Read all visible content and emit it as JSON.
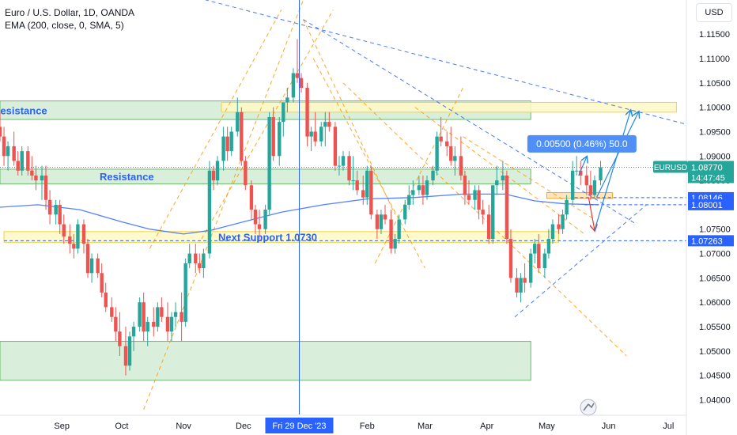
{
  "header": {
    "title": "Euro / U.S. Dollar, 1D, OANDA",
    "indicator": "EMA (200, close, 0, SMA, 5)"
  },
  "currency_button": "USD",
  "colors": {
    "up": "#26a69a",
    "down": "#ef5350",
    "ema": "#2962ff",
    "zone_green": "#c8e6c9",
    "zone_yellow": "#fff59d",
    "trend_orange": "#ff9800",
    "trend_blue": "#2962ff",
    "projection": "#1e88e5"
  },
  "chart_data": {
    "type": "candlestick",
    "symbol": "EURUSD",
    "y_range": [
      1.037,
      1.122
    ],
    "y_ticks": [
      "1.11500",
      "1.11000",
      "1.10500",
      "1.10000",
      "1.09500",
      "1.09000",
      "1.08500",
      "1.08000",
      "1.07500",
      "1.07000",
      "1.06500",
      "1.06000",
      "1.05500",
      "1.05000",
      "1.04500",
      "1.04000"
    ],
    "x_start": "2023-08-01",
    "x_end": "2024-07-10",
    "x_labels": [
      {
        "label": "Sep",
        "date": "2023-09-01"
      },
      {
        "label": "Oct",
        "date": "2023-10-01"
      },
      {
        "label": "Nov",
        "date": "2023-11-01"
      },
      {
        "label": "Dec",
        "date": "2023-12-01"
      },
      {
        "label": "Feb",
        "date": "2024-02-01"
      },
      {
        "label": "Mar",
        "date": "2024-03-01"
      },
      {
        "label": "Apr",
        "date": "2024-04-01"
      },
      {
        "label": "May",
        "date": "2024-05-01"
      },
      {
        "label": "Jun",
        "date": "2024-06-01"
      },
      {
        "label": "Jul",
        "date": "2024-07-01"
      }
    ],
    "crosshair": {
      "date": "2023-12-29",
      "label": "Fri 29 Dec '23"
    },
    "price_tags": [
      {
        "label": "EURUSD",
        "value": "1.08770",
        "countdown": "14:47:45",
        "y": 1.0877,
        "style": "current"
      },
      {
        "label": "",
        "value": "1.08146",
        "y": 1.08146,
        "style": "level"
      },
      {
        "label": "",
        "value": "1.08001",
        "y": 1.08001,
        "style": "level"
      },
      {
        "label": "",
        "value": "1.07263",
        "y": 1.07263,
        "style": "level"
      }
    ],
    "zones": [
      {
        "label": "Resistance",
        "color": "green",
        "d0": "2023-08-01",
        "d1": "2024-04-23",
        "y0": 1.0975,
        "y1": 1.1013
      },
      {
        "label": "",
        "color": "yellow",
        "d0": "2023-11-20",
        "d1": "2024-07-05",
        "y0": 1.099,
        "y1": 1.101
      },
      {
        "label": "Resistance",
        "color": "green",
        "d0": "2023-08-01",
        "d1": "2024-04-23",
        "y0": 1.0843,
        "y1": 1.0873
      },
      {
        "label": "",
        "color": "orange",
        "d0": "2024-05-01",
        "d1": "2024-06-03",
        "y0": 1.0813,
        "y1": 1.0825
      },
      {
        "label": "Next Support 1.0730",
        "color": "yellow",
        "d0": "2023-08-03",
        "d1": "2024-05-07",
        "y0": 1.0723,
        "y1": 1.0745
      },
      {
        "label": "",
        "color": "green",
        "d0": "2023-08-01",
        "d1": "2024-04-23",
        "y0": 1.044,
        "y1": 1.052
      }
    ],
    "level_lines": [
      {
        "value": 1.0877,
        "d0": "2023-08-01",
        "d1": "2024-07-10",
        "color": "#26a69a"
      },
      {
        "value": 1.08146,
        "d0": "2024-05-15",
        "d1": "2024-07-10",
        "color": "#2962ff"
      },
      {
        "value": 1.08001,
        "d0": "2024-05-20",
        "d1": "2024-07-10",
        "color": "#2962ff"
      },
      {
        "value": 1.07263,
        "d0": "2023-08-03",
        "d1": "2024-07-10",
        "color": "#2962ff"
      }
    ],
    "trendlines": [
      {
        "color": "orange",
        "d0": "2023-10-12",
        "p0": 1.038,
        "d1": "2023-12-31",
        "p1": 1.122
      },
      {
        "color": "orange",
        "d0": "2023-10-15",
        "p0": 1.071,
        "d1": "2023-12-20",
        "p1": 1.12
      },
      {
        "color": "orange",
        "d0": "2023-11-10",
        "p0": 1.073,
        "d1": "2024-01-15",
        "p1": 1.12
      },
      {
        "color": "orange",
        "d0": "2023-12-31",
        "p0": 1.118,
        "d1": "2024-02-15",
        "p1": 1.078
      },
      {
        "color": "orange",
        "d0": "2024-01-05",
        "p0": 1.11,
        "d1": "2024-03-01",
        "p1": 1.067
      },
      {
        "color": "orange",
        "d0": "2024-01-20",
        "p0": 1.105,
        "d1": "2024-06-10",
        "p1": 1.049
      },
      {
        "color": "orange",
        "d0": "2024-02-05",
        "p0": 1.068,
        "d1": "2024-03-20",
        "p1": 1.104
      },
      {
        "color": "orange",
        "d0": "2024-02-25",
        "p0": 1.1,
        "d1": "2024-05-20",
        "p1": 1.074
      },
      {
        "color": "orange",
        "d0": "2024-03-20",
        "p0": 1.094,
        "d1": "2024-05-25",
        "p1": 1.077
      },
      {
        "color": "blue",
        "d0": "2023-10-15",
        "p0": 1.125,
        "d1": "2024-07-10",
        "p1": 1.0965
      },
      {
        "color": "blue",
        "d0": "2023-12-31",
        "p0": 1.118,
        "d1": "2024-06-15",
        "p1": 1.076
      },
      {
        "color": "blue",
        "d0": "2024-04-15",
        "p0": 1.057,
        "d1": "2024-06-20",
        "p1": 1.08
      }
    ],
    "projection": [
      {
        "d0": "2024-05-22",
        "p0": 1.0815,
        "d1": "2024-05-25",
        "p1": 1.0748
      },
      {
        "d0": "2024-05-25",
        "p0": 1.0748,
        "d1": "2024-06-12",
        "p1": 1.0993
      },
      {
        "d0": "2024-05-17",
        "p0": 1.086,
        "d1": "2024-05-21",
        "p1": 1.0898
      },
      {
        "d0": "2024-05-26",
        "p0": 1.0815,
        "d1": "2024-06-16",
        "p1": 1.099
      }
    ],
    "measure_label": {
      "text": "0.00500 (0.46%) 50.0",
      "date": "2024-05-23",
      "y": 1.0925
    },
    "ema": [
      [
        "2023-08-01",
        1.0795
      ],
      [
        "2023-08-20",
        1.08
      ],
      [
        "2023-09-10",
        1.079
      ],
      [
        "2023-10-01",
        1.0765
      ],
      [
        "2023-10-15",
        1.075
      ],
      [
        "2023-11-01",
        1.074
      ],
      [
        "2023-11-15",
        1.0748
      ],
      [
        "2023-12-01",
        1.0765
      ],
      [
        "2023-12-20",
        1.0785
      ],
      [
        "2024-01-10",
        1.08
      ],
      [
        "2024-02-01",
        1.0812
      ],
      [
        "2024-02-25",
        1.0815
      ],
      [
        "2024-03-20",
        1.0822
      ],
      [
        "2024-04-10",
        1.0822
      ],
      [
        "2024-04-25",
        1.0808
      ],
      [
        "2024-05-10",
        1.0802
      ],
      [
        "2024-05-27",
        1.08
      ]
    ],
    "candles": [
      [
        "2023-08-01",
        1.096,
        1.099,
        1.093,
        1.094
      ],
      [
        "2023-08-03",
        1.094,
        1.096,
        1.088,
        1.09
      ],
      [
        "2023-08-05",
        1.09,
        1.093,
        1.087,
        1.092
      ],
      [
        "2023-08-08",
        1.092,
        1.095,
        1.088,
        1.089
      ],
      [
        "2023-08-10",
        1.089,
        1.091,
        1.086,
        1.087
      ],
      [
        "2023-08-12",
        1.087,
        1.092,
        1.086,
        1.091
      ],
      [
        "2023-08-15",
        1.091,
        1.092,
        1.086,
        1.087
      ],
      [
        "2023-08-17",
        1.087,
        1.09,
        1.085,
        1.086
      ],
      [
        "2023-08-19",
        1.086,
        1.088,
        1.083,
        1.085
      ],
      [
        "2023-08-22",
        1.085,
        1.088,
        1.081,
        1.086
      ],
      [
        "2023-08-24",
        1.086,
        1.088,
        1.079,
        1.081
      ],
      [
        "2023-08-26",
        1.081,
        1.083,
        1.076,
        1.078
      ],
      [
        "2023-08-29",
        1.078,
        1.081,
        1.076,
        1.08
      ],
      [
        "2023-08-31",
        1.08,
        1.081,
        1.074,
        1.076
      ],
      [
        "2023-09-02",
        1.076,
        1.078,
        1.072,
        1.0735
      ],
      [
        "2023-09-05",
        1.0735,
        1.076,
        1.07,
        1.072
      ],
      [
        "2023-09-07",
        1.072,
        1.074,
        1.069,
        1.071
      ],
      [
        "2023-09-09",
        1.071,
        1.077,
        1.07,
        1.076
      ],
      [
        "2023-09-12",
        1.076,
        1.077,
        1.07,
        1.072
      ],
      [
        "2023-09-14",
        1.072,
        1.073,
        1.065,
        1.066
      ],
      [
        "2023-09-16",
        1.066,
        1.07,
        1.064,
        1.069
      ],
      [
        "2023-09-19",
        1.069,
        1.07,
        1.065,
        1.066
      ],
      [
        "2023-09-21",
        1.066,
        1.068,
        1.061,
        1.062
      ],
      [
        "2023-09-23",
        1.062,
        1.064,
        1.058,
        1.059
      ],
      [
        "2023-09-26",
        1.059,
        1.061,
        1.056,
        1.057
      ],
      [
        "2023-09-28",
        1.057,
        1.059,
        1.052,
        1.054
      ],
      [
        "2023-09-30",
        1.054,
        1.058,
        1.049,
        1.051
      ],
      [
        "2023-10-03",
        1.051,
        1.055,
        1.045,
        1.047
      ],
      [
        "2023-10-05",
        1.047,
        1.054,
        1.046,
        1.053
      ],
      [
        "2023-10-07",
        1.053,
        1.056,
        1.05,
        1.055
      ],
      [
        "2023-10-10",
        1.055,
        1.061,
        1.054,
        1.06
      ],
      [
        "2023-10-12",
        1.06,
        1.062,
        1.052,
        1.054
      ],
      [
        "2023-10-14",
        1.054,
        1.057,
        1.051,
        1.056
      ],
      [
        "2023-10-17",
        1.056,
        1.059,
        1.053,
        1.055
      ],
      [
        "2023-10-19",
        1.055,
        1.06,
        1.054,
        1.059
      ],
      [
        "2023-10-21",
        1.059,
        1.061,
        1.056,
        1.057
      ],
      [
        "2023-10-24",
        1.057,
        1.06,
        1.052,
        1.054
      ],
      [
        "2023-10-26",
        1.054,
        1.058,
        1.052,
        1.057
      ],
      [
        "2023-10-28",
        1.057,
        1.06,
        1.055,
        1.058
      ],
      [
        "2023-10-31",
        1.058,
        1.062,
        1.052,
        1.056
      ],
      [
        "2023-11-02",
        1.056,
        1.069,
        1.055,
        1.068
      ],
      [
        "2023-11-04",
        1.068,
        1.072,
        1.067,
        1.07
      ],
      [
        "2023-11-07",
        1.07,
        1.072,
        1.066,
        1.068
      ],
      [
        "2023-11-09",
        1.068,
        1.07,
        1.066,
        1.067
      ],
      [
        "2023-11-11",
        1.067,
        1.071,
        1.065,
        1.07
      ],
      [
        "2023-11-14",
        1.07,
        1.089,
        1.069,
        1.087
      ],
      [
        "2023-11-16",
        1.087,
        1.088,
        1.083,
        1.085
      ],
      [
        "2023-11-18",
        1.085,
        1.09,
        1.084,
        1.089
      ],
      [
        "2023-11-21",
        1.089,
        1.096,
        1.087,
        1.094
      ],
      [
        "2023-11-23",
        1.094,
        1.096,
        1.089,
        1.091
      ],
      [
        "2023-11-25",
        1.091,
        1.096,
        1.09,
        1.095
      ],
      [
        "2023-11-28",
        1.095,
        1.102,
        1.094,
        1.099
      ],
      [
        "2023-11-30",
        1.099,
        1.1,
        1.088,
        1.089
      ],
      [
        "2023-12-02",
        1.089,
        1.09,
        1.083,
        1.084
      ],
      [
        "2023-12-05",
        1.084,
        1.085,
        1.077,
        1.079
      ],
      [
        "2023-12-07",
        1.079,
        1.08,
        1.074,
        1.076
      ],
      [
        "2023-12-09",
        1.076,
        1.079,
        1.073,
        1.075
      ],
      [
        "2023-12-12",
        1.075,
        1.08,
        1.074,
        1.079
      ],
      [
        "2023-12-14",
        1.079,
        1.099,
        1.078,
        1.098
      ],
      [
        "2023-12-16",
        1.098,
        1.1,
        1.089,
        1.09
      ],
      [
        "2023-12-19",
        1.09,
        1.098,
        1.088,
        1.097
      ],
      [
        "2023-12-21",
        1.097,
        1.101,
        1.094,
        1.101
      ],
      [
        "2023-12-23",
        1.101,
        1.104,
        1.099,
        1.102
      ],
      [
        "2023-12-26",
        1.102,
        1.108,
        1.101,
        1.107
      ],
      [
        "2023-12-28",
        1.107,
        1.114,
        1.105,
        1.106
      ],
      [
        "2023-12-30",
        1.106,
        1.107,
        1.103,
        1.104
      ],
      [
        "2024-01-02",
        1.104,
        1.105,
        1.092,
        1.094
      ],
      [
        "2024-01-04",
        1.094,
        1.096,
        1.091,
        1.095
      ],
      [
        "2024-01-06",
        1.095,
        1.099,
        1.092,
        1.093
      ],
      [
        "2024-01-09",
        1.093,
        1.097,
        1.092,
        1.096
      ],
      [
        "2024-01-11",
        1.096,
        1.099,
        1.092,
        1.097
      ],
      [
        "2024-01-13",
        1.097,
        1.099,
        1.095,
        1.096
      ],
      [
        "2024-01-16",
        1.096,
        1.097,
        1.087,
        1.088
      ],
      [
        "2024-01-18",
        1.088,
        1.09,
        1.086,
        1.088
      ],
      [
        "2024-01-20",
        1.088,
        1.091,
        1.087,
        1.09
      ],
      [
        "2024-01-23",
        1.09,
        1.091,
        1.084,
        1.085
      ],
      [
        "2024-01-25",
        1.085,
        1.09,
        1.083,
        1.085
      ],
      [
        "2024-01-27",
        1.085,
        1.087,
        1.082,
        1.083
      ],
      [
        "2024-01-30",
        1.083,
        1.086,
        1.08,
        1.0815
      ],
      [
        "2024-02-01",
        1.0815,
        1.088,
        1.08,
        1.087
      ],
      [
        "2024-02-03",
        1.087,
        1.088,
        1.077,
        1.078
      ],
      [
        "2024-02-06",
        1.078,
        1.079,
        1.073,
        1.075
      ],
      [
        "2024-02-08",
        1.075,
        1.079,
        1.074,
        1.078
      ],
      [
        "2024-02-10",
        1.078,
        1.08,
        1.076,
        1.077
      ],
      [
        "2024-02-13",
        1.077,
        1.079,
        1.07,
        1.071
      ],
      [
        "2024-02-15",
        1.071,
        1.074,
        1.07,
        1.073
      ],
      [
        "2024-02-17",
        1.073,
        1.078,
        1.072,
        1.077
      ],
      [
        "2024-02-20",
        1.077,
        1.081,
        1.076,
        1.08
      ],
      [
        "2024-02-22",
        1.08,
        1.084,
        1.079,
        1.082
      ],
      [
        "2024-02-24",
        1.082,
        1.085,
        1.08,
        1.083
      ],
      [
        "2024-02-27",
        1.083,
        1.086,
        1.082,
        1.084
      ],
      [
        "2024-02-29",
        1.084,
        1.086,
        1.08,
        1.082
      ],
      [
        "2024-03-02",
        1.082,
        1.086,
        1.081,
        1.085
      ],
      [
        "2024-03-05",
        1.085,
        1.088,
        1.084,
        1.087
      ],
      [
        "2024-03-07",
        1.087,
        1.095,
        1.086,
        1.094
      ],
      [
        "2024-03-09",
        1.094,
        1.098,
        1.092,
        1.093
      ],
      [
        "2024-03-12",
        1.093,
        1.095,
        1.09,
        1.092
      ],
      [
        "2024-03-14",
        1.092,
        1.096,
        1.088,
        1.089
      ],
      [
        "2024-03-16",
        1.089,
        1.092,
        1.086,
        1.09
      ],
      [
        "2024-03-19",
        1.09,
        1.094,
        1.085,
        1.086
      ],
      [
        "2024-03-21",
        1.086,
        1.087,
        1.08,
        1.082
      ],
      [
        "2024-03-23",
        1.082,
        1.085,
        1.08,
        1.081
      ],
      [
        "2024-03-26",
        1.081,
        1.084,
        1.079,
        1.083
      ],
      [
        "2024-03-28",
        1.083,
        1.084,
        1.077,
        1.079
      ],
      [
        "2024-03-30",
        1.079,
        1.081,
        1.076,
        1.078
      ],
      [
        "2024-04-02",
        1.078,
        1.08,
        1.072,
        1.073
      ],
      [
        "2024-04-04",
        1.073,
        1.084,
        1.072,
        1.084
      ],
      [
        "2024-04-06",
        1.084,
        1.088,
        1.082,
        1.085
      ],
      [
        "2024-04-09",
        1.085,
        1.089,
        1.083,
        1.086
      ],
      [
        "2024-04-11",
        1.086,
        1.087,
        1.072,
        1.073
      ],
      [
        "2024-04-13",
        1.073,
        1.075,
        1.064,
        1.065
      ],
      [
        "2024-04-16",
        1.065,
        1.067,
        1.061,
        1.062
      ],
      [
        "2024-04-18",
        1.062,
        1.066,
        1.06,
        1.065
      ],
      [
        "2024-04-20",
        1.065,
        1.068,
        1.062,
        1.064
      ],
      [
        "2024-04-23",
        1.064,
        1.071,
        1.063,
        1.07
      ],
      [
        "2024-04-25",
        1.07,
        1.073,
        1.068,
        1.072
      ],
      [
        "2024-04-27",
        1.072,
        1.074,
        1.066,
        1.067
      ],
      [
        "2024-04-30",
        1.067,
        1.071,
        1.065,
        1.07
      ],
      [
        "2024-05-02",
        1.07,
        1.075,
        1.069,
        1.073
      ],
      [
        "2024-05-04",
        1.073,
        1.077,
        1.072,
        1.076
      ],
      [
        "2024-05-07",
        1.076,
        1.078,
        1.074,
        1.075
      ],
      [
        "2024-05-09",
        1.075,
        1.079,
        1.074,
        1.078
      ],
      [
        "2024-05-11",
        1.078,
        1.082,
        1.077,
        1.081
      ],
      [
        "2024-05-14",
        1.081,
        1.089,
        1.08,
        1.087
      ],
      [
        "2024-05-16",
        1.087,
        1.09,
        1.086,
        1.087
      ],
      [
        "2024-05-18",
        1.087,
        1.089,
        1.084,
        1.086
      ],
      [
        "2024-05-21",
        1.086,
        1.088,
        1.082,
        1.084
      ],
      [
        "2024-05-23",
        1.084,
        1.087,
        1.081,
        1.082
      ],
      [
        "2024-05-25",
        1.082,
        1.086,
        1.0815,
        1.085
      ],
      [
        "2024-05-28",
        1.085,
        1.089,
        1.084,
        1.0877
      ]
    ]
  }
}
